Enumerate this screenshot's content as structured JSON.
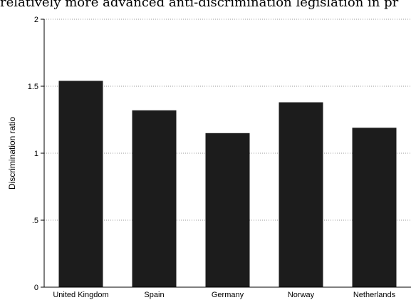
{
  "page": {
    "top_text": "relatively more advanced anti-discrimination legislation in pr"
  },
  "chart_data": {
    "type": "bar",
    "title": "",
    "xlabel": "",
    "ylabel": "Discrimination ratio",
    "categories": [
      "United Kingdom",
      "Spain",
      "Germany",
      "Norway",
      "Netherlands"
    ],
    "values": [
      1.54,
      1.32,
      1.15,
      1.38,
      1.19
    ],
    "ylim": [
      0,
      2
    ],
    "yticks": [
      0,
      0.5,
      1,
      1.5,
      2
    ],
    "ytick_labels": [
      "0",
      ".5",
      "1",
      "1.5",
      "2"
    ],
    "grid": true,
    "bar_color": "#1c1c1c",
    "grid_color": "#9a9a9a"
  }
}
